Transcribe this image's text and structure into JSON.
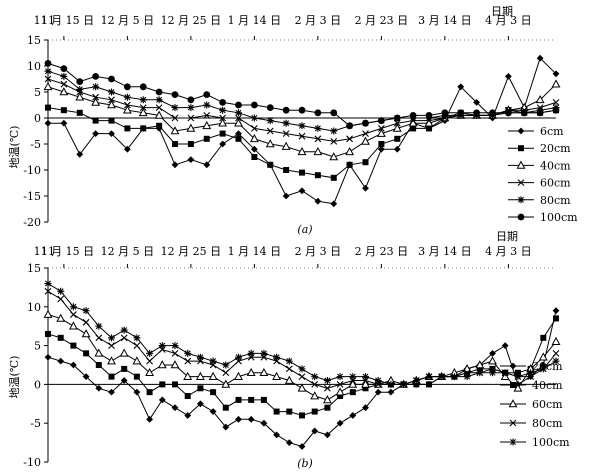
{
  "chart_data": [
    {
      "type": "line",
      "panel_label": "(a)",
      "xlabel": "日期",
      "ylabel": "地温(℃)",
      "ylim": [
        -20,
        15
      ],
      "yticks": [
        -20,
        -15,
        -10,
        -5,
        0,
        5,
        10,
        15
      ],
      "x_tick_labels": [
        "11 月 15 日",
        "12 月 5 日",
        "12 月 25 日",
        "1 月 14 日",
        "2 月 3 日",
        "2 月 23 日",
        "3 月 14 日",
        "4 月 3 日"
      ],
      "x_tick_days": [
        0,
        20,
        40,
        60,
        80,
        100,
        120,
        140
      ],
      "x_start_label": "11",
      "x_days": [
        -5,
        0,
        5,
        10,
        15,
        20,
        25,
        30,
        35,
        40,
        45,
        50,
        55,
        60,
        65,
        70,
        75,
        80,
        85,
        90,
        95,
        100,
        105,
        110,
        115,
        120,
        125,
        130,
        135,
        140,
        145,
        150,
        155
      ],
      "legend_position": "right",
      "grid": false,
      "series": [
        {
          "name": "6cm",
          "marker": "diamond",
          "values": [
            -1,
            -1,
            -7,
            -3,
            -3,
            -6,
            -2,
            -2,
            -9,
            -8,
            -9,
            -5,
            -3,
            -6,
            -9,
            -15,
            -14,
            -16,
            -16.5,
            -9,
            -13.5,
            -6,
            -6,
            -1,
            -2,
            -0.5,
            6,
            3,
            0,
            8,
            2,
            11.5,
            8.5
          ]
        },
        {
          "name": "20cm",
          "marker": "square",
          "values": [
            2,
            1.5,
            1,
            -0.5,
            -0.5,
            -2,
            -2,
            -1.5,
            -5,
            -5,
            -4,
            -3,
            -4,
            -7.5,
            -9,
            -10,
            -10.5,
            -11,
            -11.5,
            -9,
            -8.5,
            -5,
            -4,
            -2,
            -2,
            0,
            1,
            0.5,
            0.5,
            1.5,
            1,
            1,
            1.5
          ]
        },
        {
          "name": "40cm",
          "marker": "triangle",
          "values": [
            6,
            5,
            4,
            3,
            2.5,
            1.5,
            1,
            0.5,
            -2.5,
            -2,
            -1.5,
            -1,
            -1,
            -4,
            -5,
            -5.5,
            -6.5,
            -6.5,
            -7.5,
            -6.5,
            -4.5,
            -3,
            -2,
            -1,
            -1,
            0,
            0.5,
            0.5,
            0.5,
            1.5,
            2,
            3.5,
            6.5
          ]
        },
        {
          "name": "60cm",
          "marker": "x",
          "values": [
            7.5,
            6.5,
            5,
            4,
            3.5,
            2.5,
            2,
            2,
            0,
            0,
            0.5,
            0,
            0,
            -2,
            -2.5,
            -3,
            -3.5,
            -4,
            -4.5,
            -4,
            -3,
            -2,
            -1,
            -0.5,
            -0.5,
            0,
            0.5,
            0.5,
            0.5,
            1.5,
            1.5,
            2,
            3
          ]
        },
        {
          "name": "80cm",
          "marker": "star",
          "values": [
            9,
            8,
            5.5,
            6,
            5,
            4,
            3.5,
            3.5,
            2,
            2,
            2.5,
            1.5,
            1,
            0,
            -0.5,
            -1,
            -1.5,
            -2,
            -2.5,
            -1.5,
            -1,
            -0.5,
            0,
            0,
            0,
            0.5,
            0.5,
            0.5,
            0.5,
            1,
            1,
            1.5,
            2
          ]
        },
        {
          "name": "100cm",
          "marker": "circle",
          "values": [
            10.5,
            9.5,
            7,
            8,
            7.5,
            6,
            6,
            5,
            4.5,
            3.5,
            4.5,
            3,
            2.5,
            2.5,
            2,
            1.5,
            1.5,
            1,
            1,
            -1.5,
            -1,
            -0.5,
            0,
            0.5,
            0.5,
            1,
            1,
            1,
            1,
            1,
            1,
            1,
            1.5
          ]
        }
      ]
    },
    {
      "type": "line",
      "panel_label": "(b)",
      "xlabel": "日期",
      "ylabel": "地温(℃)",
      "ylim": [
        -10,
        15
      ],
      "yticks": [
        -10,
        -5,
        0,
        5,
        10,
        15
      ],
      "x_tick_labels": [
        "11 月 15 日",
        "12 月 5 日",
        "12 月 25 日",
        "1 月 14 日",
        "2 月 3 日",
        "2 月 23 日",
        "3 月 14 日",
        "4 月 3 日"
      ],
      "x_tick_days": [
        0,
        20,
        40,
        60,
        80,
        100,
        120,
        140
      ],
      "x_start_label": "11",
      "x_days": [
        -5,
        -1,
        3,
        7,
        11,
        15,
        19,
        23,
        27,
        31,
        35,
        39,
        43,
        47,
        51,
        55,
        59,
        63,
        67,
        71,
        75,
        79,
        83,
        87,
        91,
        95,
        99,
        103,
        107,
        111,
        115,
        119,
        123,
        127,
        131,
        135,
        139,
        143,
        147,
        151,
        155
      ],
      "legend_position": "right",
      "grid": false,
      "series": [
        {
          "name": "20cm",
          "marker": "diamond",
          "values": [
            3.5,
            3,
            2.5,
            1,
            -0.5,
            -1,
            0.5,
            -1,
            -4.5,
            -2,
            -3,
            -4,
            -2.5,
            -3.5,
            -5.5,
            -4.5,
            -4.5,
            -5,
            -6.5,
            -7.5,
            -8,
            -6,
            -6.5,
            -5,
            -4,
            -3,
            -1,
            -1,
            0,
            0,
            0,
            1,
            1,
            2,
            2.5,
            4,
            5,
            0,
            1,
            2.5,
            9.5
          ]
        },
        {
          "name": "40cm",
          "marker": "square",
          "values": [
            6.5,
            6,
            5,
            4,
            2.5,
            1,
            2,
            1,
            -1,
            0,
            0,
            -1.5,
            -0.5,
            -1,
            -3,
            -2,
            -2,
            -2,
            -3.5,
            -3.5,
            -4,
            -3.5,
            -3,
            -1.5,
            -1,
            -0.5,
            0,
            0,
            0,
            0,
            0,
            1,
            1,
            1.5,
            2,
            2,
            1.5,
            1.5,
            2,
            6,
            8.5
          ]
        },
        {
          "name": "60cm",
          "marker": "triangle",
          "values": [
            9,
            8.5,
            7.5,
            6.5,
            4,
            3,
            4,
            3,
            1.5,
            2.5,
            2.5,
            1,
            1,
            1,
            0,
            1,
            1.5,
            1.5,
            1,
            0.5,
            -0.5,
            -1.5,
            -2,
            -1,
            0,
            0,
            0,
            0.5,
            0,
            0.5,
            1,
            1,
            1.5,
            2,
            2.5,
            3,
            1,
            -0.5,
            2,
            3.5,
            5.5
          ]
        },
        {
          "name": "80cm",
          "marker": "x",
          "values": [
            12,
            11,
            9,
            8,
            6,
            5,
            6,
            5,
            3,
            4.5,
            4,
            3,
            3,
            2.5,
            1.5,
            3,
            3.5,
            3.5,
            3,
            2,
            1,
            0,
            -0.5,
            0,
            0.5,
            0.5,
            0,
            0,
            0,
            0.5,
            1,
            1,
            1,
            1.5,
            1.5,
            2,
            1.5,
            1,
            1,
            2,
            4
          ]
        },
        {
          "name": "100cm",
          "marker": "star",
          "values": [
            13,
            12,
            10,
            9.5,
            7.5,
            6,
            7,
            6,
            4,
            5,
            5,
            4,
            3.5,
            3,
            2.5,
            3.5,
            4,
            4,
            3.5,
            3,
            2,
            1,
            0.5,
            1,
            1,
            1,
            0.5,
            0,
            0,
            0.5,
            1,
            1,
            1,
            1,
            1.5,
            1.5,
            1.5,
            1,
            1.5,
            2,
            3
          ]
        }
      ]
    }
  ]
}
